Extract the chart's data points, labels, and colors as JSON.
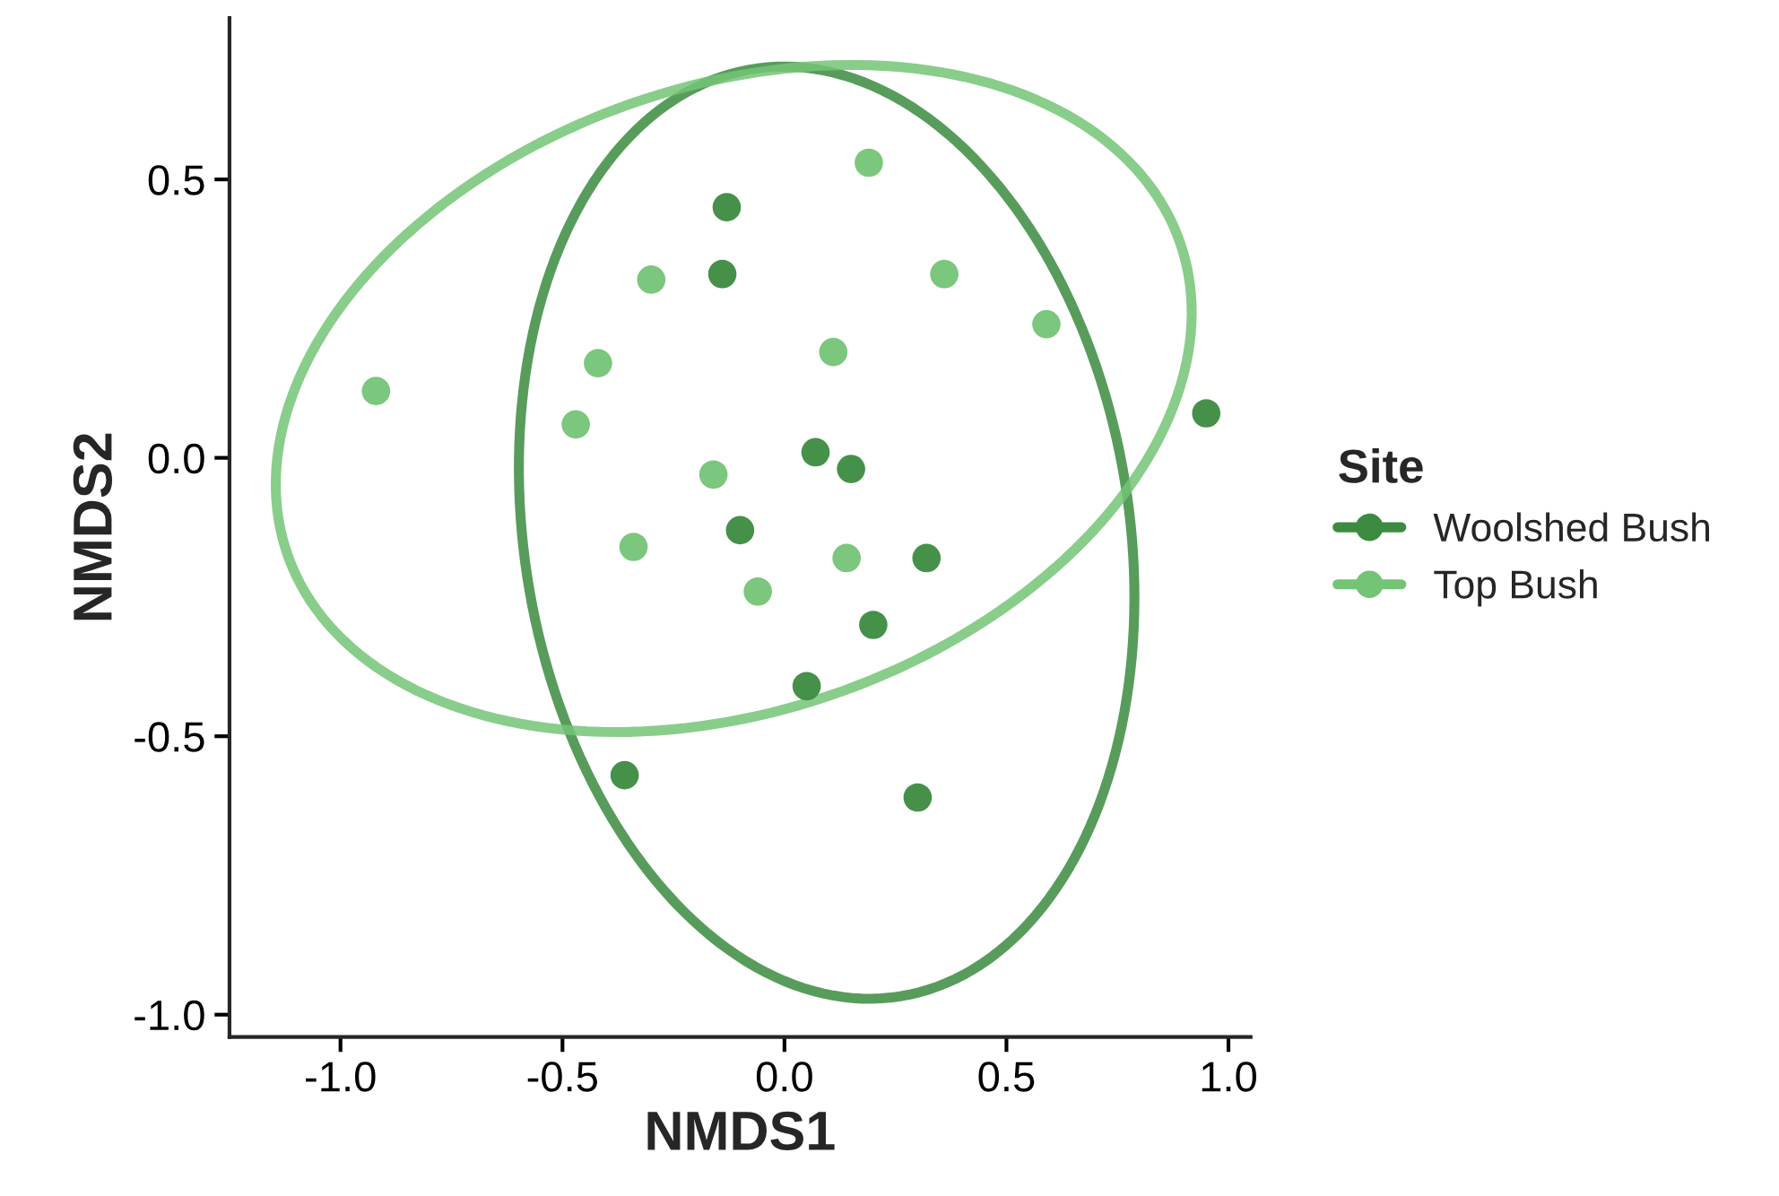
{
  "chart_data": {
    "type": "scatter",
    "xlabel": "NMDS1",
    "ylabel": "NMDS2",
    "legend_title": "Site",
    "legend": "right",
    "grid": false,
    "marker": "circle",
    "xlim": [
      -1.25,
      1.05
    ],
    "ylim": [
      -1.04,
      0.79
    ],
    "xticks": [
      {
        "value": -1.0,
        "label": "-1.0"
      },
      {
        "value": -0.5,
        "label": "-0.5"
      },
      {
        "value": 0.0,
        "label": "0.0"
      },
      {
        "value": 0.5,
        "label": "0.5"
      },
      {
        "value": 1.0,
        "label": "1.0"
      }
    ],
    "yticks": [
      {
        "value": -1.0,
        "label": "-1.0"
      },
      {
        "value": -0.5,
        "label": "-0.5"
      },
      {
        "value": 0.0,
        "label": "0.0"
      },
      {
        "value": 0.5,
        "label": "0.5"
      }
    ],
    "series": [
      {
        "name": "Woolshed Bush",
        "color": "#3b8b40",
        "x": [
          -0.13,
          -0.14,
          0.95,
          0.07,
          0.15,
          -0.1,
          0.32,
          0.2,
          0.05,
          -0.36,
          0.3
        ],
        "values": [
          0.45,
          0.33,
          0.08,
          0.01,
          -0.02,
          -0.13,
          -0.18,
          -0.3,
          -0.41,
          -0.57,
          -0.61
        ]
      },
      {
        "name": "Top Bush",
        "color": "#74c476",
        "x": [
          0.19,
          -0.3,
          0.36,
          0.59,
          0.11,
          -0.42,
          -0.92,
          -0.47,
          -0.16,
          -0.34,
          0.14,
          -0.06
        ],
        "values": [
          0.53,
          0.32,
          0.33,
          0.24,
          0.19,
          0.17,
          0.12,
          0.06,
          -0.03,
          -0.16,
          -0.18,
          -0.24
        ]
      }
    ]
  }
}
